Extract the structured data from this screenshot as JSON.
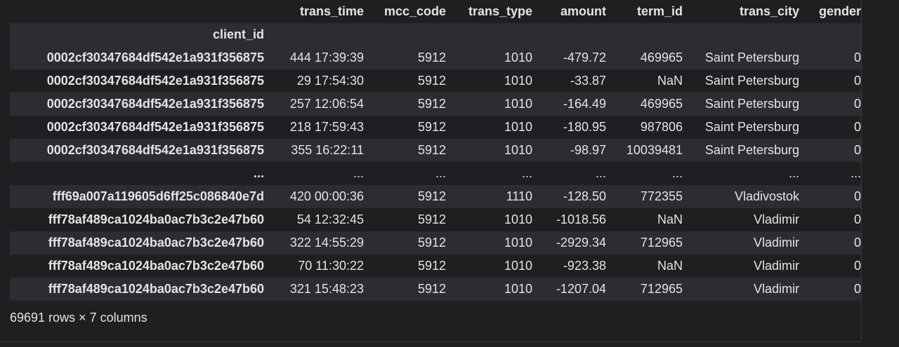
{
  "dataframe": {
    "columns": [
      "trans_time",
      "mcc_code",
      "trans_type",
      "amount",
      "term_id",
      "trans_city",
      "gender"
    ],
    "index_name": "client_id",
    "rows": [
      {
        "client_id": "0002cf30347684df542e1a931f356875",
        "trans_time": "444 17:39:39",
        "mcc_code": "5912",
        "trans_type": "1010",
        "amount": "-479.72",
        "term_id": "469965",
        "trans_city": "Saint Petersburg",
        "gender": "0"
      },
      {
        "client_id": "0002cf30347684df542e1a931f356875",
        "trans_time": "29 17:54:30",
        "mcc_code": "5912",
        "trans_type": "1010",
        "amount": "-33.87",
        "term_id": "NaN",
        "trans_city": "Saint Petersburg",
        "gender": "0"
      },
      {
        "client_id": "0002cf30347684df542e1a931f356875",
        "trans_time": "257 12:06:54",
        "mcc_code": "5912",
        "trans_type": "1010",
        "amount": "-164.49",
        "term_id": "469965",
        "trans_city": "Saint Petersburg",
        "gender": "0"
      },
      {
        "client_id": "0002cf30347684df542e1a931f356875",
        "trans_time": "218 17:59:43",
        "mcc_code": "5912",
        "trans_type": "1010",
        "amount": "-180.95",
        "term_id": "987806",
        "trans_city": "Saint Petersburg",
        "gender": "0"
      },
      {
        "client_id": "0002cf30347684df542e1a931f356875",
        "trans_time": "355 16:22:11",
        "mcc_code": "5912",
        "trans_type": "1010",
        "amount": "-98.97",
        "term_id": "10039481",
        "trans_city": "Saint Petersburg",
        "gender": "0"
      },
      {
        "client_id": "...",
        "trans_time": "...",
        "mcc_code": "...",
        "trans_type": "...",
        "amount": "...",
        "term_id": "...",
        "trans_city": "...",
        "gender": "..."
      },
      {
        "client_id": "fff69a007a119605d6ff25c086840e7d",
        "trans_time": "420 00:00:36",
        "mcc_code": "5912",
        "trans_type": "1110",
        "amount": "-128.50",
        "term_id": "772355",
        "trans_city": "Vladivostok",
        "gender": "0"
      },
      {
        "client_id": "fff78af489ca1024ba0ac7b3c2e47b60",
        "trans_time": "54 12:32:45",
        "mcc_code": "5912",
        "trans_type": "1010",
        "amount": "-1018.56",
        "term_id": "NaN",
        "trans_city": "Vladimir",
        "gender": "0"
      },
      {
        "client_id": "fff78af489ca1024ba0ac7b3c2e47b60",
        "trans_time": "322 14:55:29",
        "mcc_code": "5912",
        "trans_type": "1010",
        "amount": "-2929.34",
        "term_id": "712965",
        "trans_city": "Vladimir",
        "gender": "0"
      },
      {
        "client_id": "fff78af489ca1024ba0ac7b3c2e47b60",
        "trans_time": "70 11:30:22",
        "mcc_code": "5912",
        "trans_type": "1010",
        "amount": "-923.38",
        "term_id": "NaN",
        "trans_city": "Vladimir",
        "gender": "0"
      },
      {
        "client_id": "fff78af489ca1024ba0ac7b3c2e47b60",
        "trans_time": "321 15:48:23",
        "mcc_code": "5912",
        "trans_type": "1010",
        "amount": "-1207.04",
        "term_id": "712965",
        "trans_city": "Vladimir",
        "gender": "0"
      }
    ],
    "shape_text": "69691 rows × 7 columns"
  },
  "colors": {
    "background": "#1e1f21",
    "row_stripe": "#2b2d30",
    "text": "#e3e4e6"
  }
}
